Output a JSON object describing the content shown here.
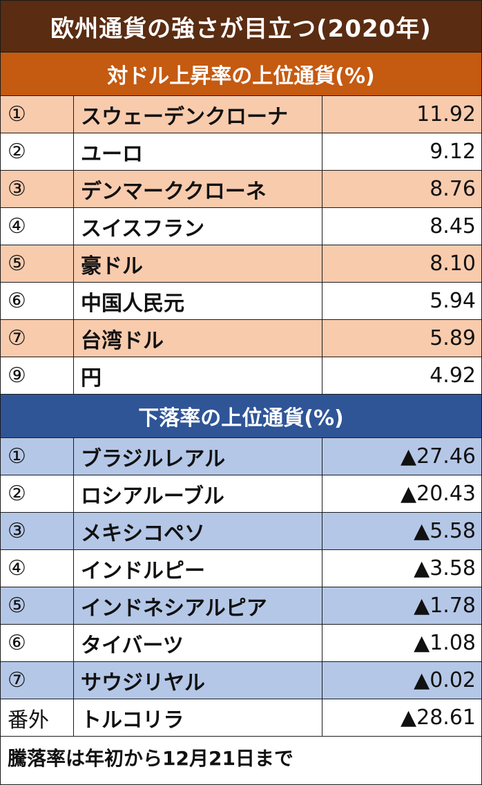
{
  "title": "欧州通貨の強さが目立つ(2020年)",
  "rising": {
    "header": "対ドル上昇率の上位通貨(%)",
    "rows": [
      {
        "rank": "①",
        "name": "スウェーデンクローナ",
        "value": "11.92"
      },
      {
        "rank": "②",
        "name": "ユーロ",
        "value": "9.12"
      },
      {
        "rank": "③",
        "name": "デンマーククローネ",
        "value": "8.76"
      },
      {
        "rank": "④",
        "name": "スイスフラン",
        "value": "8.45"
      },
      {
        "rank": "⑤",
        "name": "豪ドル",
        "value": "8.10"
      },
      {
        "rank": "⑥",
        "name": "中国人民元",
        "value": "5.94"
      },
      {
        "rank": "⑦",
        "name": "台湾ドル",
        "value": "5.89"
      },
      {
        "rank": "⑨",
        "name": "円",
        "value": "4.92"
      }
    ]
  },
  "falling": {
    "header": "下落率の上位通貨(%)",
    "rows": [
      {
        "rank": "①",
        "name": "ブラジルレアル",
        "value": "▲27.46"
      },
      {
        "rank": "②",
        "name": "ロシアルーブル",
        "value": "▲20.43"
      },
      {
        "rank": "③",
        "name": "メキシコペソ",
        "value": "▲5.58"
      },
      {
        "rank": "④",
        "name": "インドルピー",
        "value": "▲3.58"
      },
      {
        "rank": "⑤",
        "name": "インドネシアルピア",
        "value": "▲1.78"
      },
      {
        "rank": "⑥",
        "name": "タイバーツ",
        "value": "▲1.08"
      },
      {
        "rank": "⑦",
        "name": "サウジリヤル",
        "value": "▲0.02"
      },
      {
        "rank": "番外",
        "name": "トルコリラ",
        "value": "▲28.61"
      }
    ]
  },
  "footer_note": "騰落率は年初から12月21日まで",
  "colors": {
    "title_bg": "#5a2c12",
    "rising_header_bg": "#c55a11",
    "rising_row_alt": "#f8cbad",
    "falling_header_bg": "#2f5597",
    "falling_row_alt": "#b4c7e7"
  }
}
